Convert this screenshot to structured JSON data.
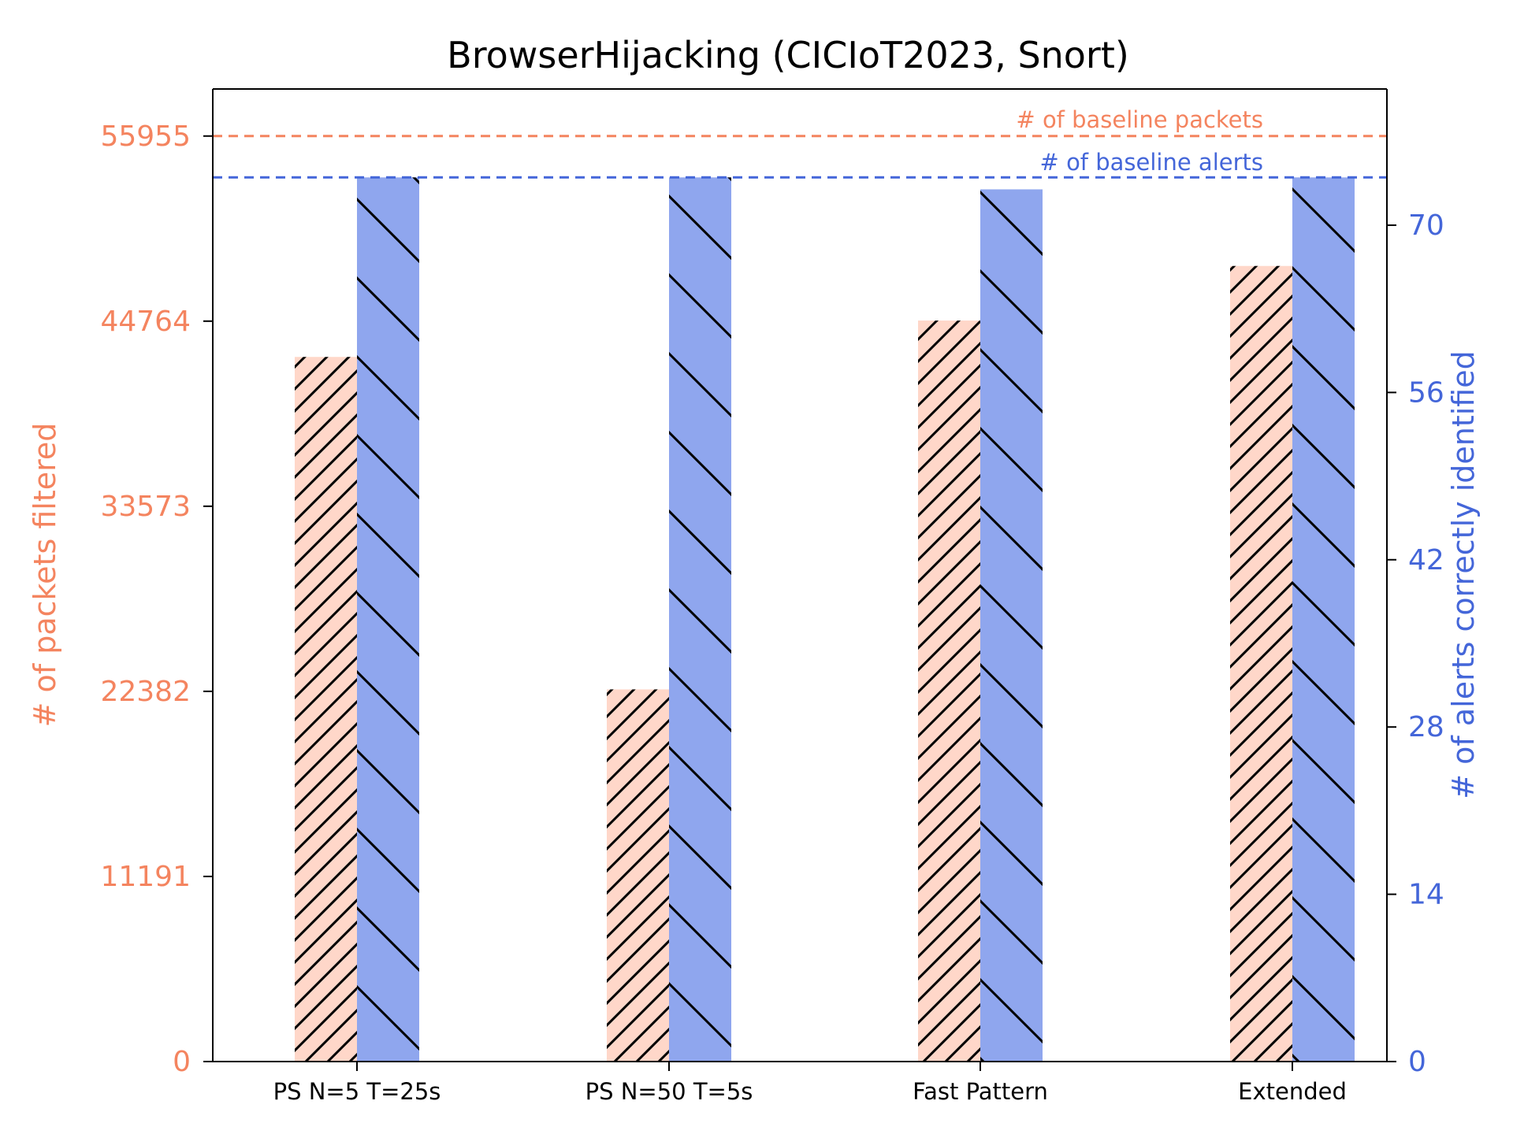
{
  "chart_data": {
    "type": "bar",
    "title": "BrowserHijacking (CICIoT2023, Snort)",
    "categories": [
      "PS N=5 T=25s",
      "PS N=50 T=5s",
      "Fast Pattern",
      "Extended"
    ],
    "series": [
      {
        "name": "# of packets filtered",
        "axis": "left",
        "color": "#F4845F",
        "fill": "#FFD7C9",
        "hatch": "forward-slash",
        "values": [
          42600,
          22500,
          44800,
          48100
        ]
      },
      {
        "name": "# of alerts correctly identified",
        "axis": "right",
        "color": "#4466D9",
        "fill": "#8FA6EE",
        "hatch": "back-slash",
        "values": [
          74,
          74,
          73,
          74
        ]
      }
    ],
    "left_axis": {
      "label": "# of packets filtered",
      "ticks": [
        "0",
        "11191",
        "22382",
        "33573",
        "44764",
        "55955"
      ],
      "tick_values": [
        0,
        11191,
        22382,
        33573,
        44764,
        55955
      ],
      "ylim": [
        0,
        58800
      ]
    },
    "right_axis": {
      "label": "# of alerts correctly identified",
      "ticks": [
        "0",
        "14",
        "28",
        "42",
        "56",
        "70"
      ],
      "tick_values": [
        0,
        14,
        28,
        42,
        56,
        70
      ],
      "ylim": [
        0,
        81.4
      ]
    },
    "reference_lines": [
      {
        "label": "# of baseline packets",
        "axis": "left",
        "value": 55955,
        "color": "#F4845F"
      },
      {
        "label": "# of baseline alerts",
        "axis": "right",
        "value": 74,
        "color": "#4466D9"
      }
    ],
    "grid": false
  }
}
